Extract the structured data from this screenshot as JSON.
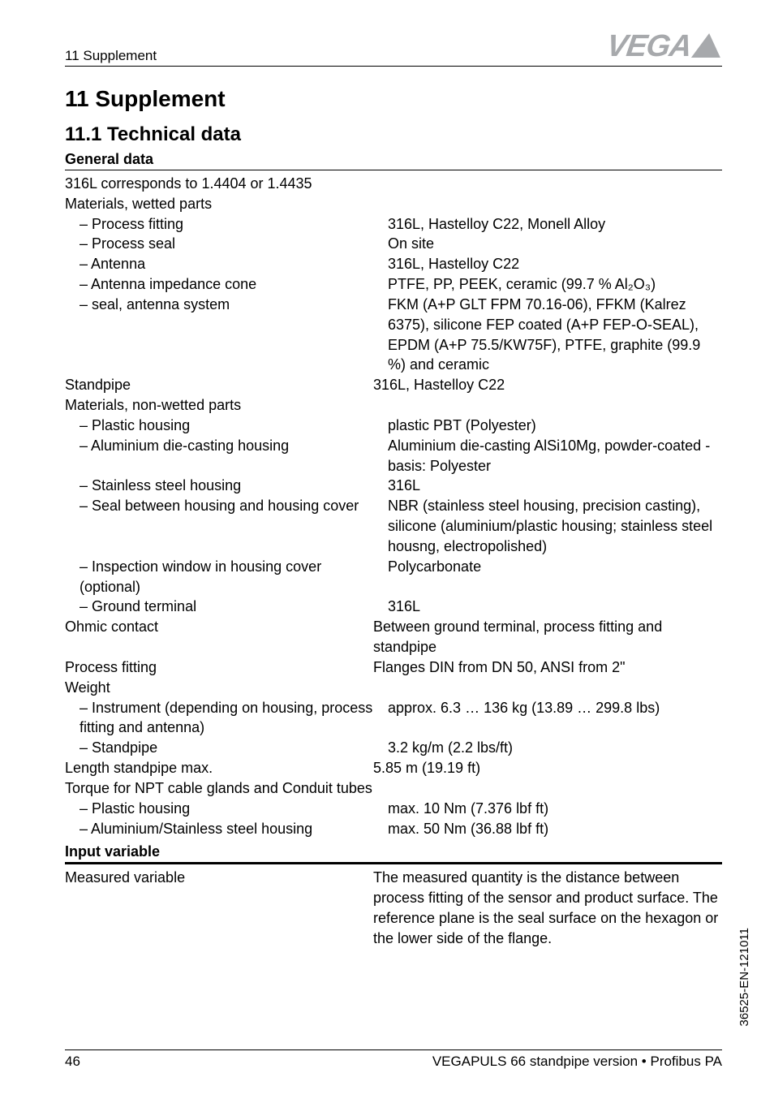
{
  "header": {
    "left": "11 Supplement",
    "logo_text": "VEGA"
  },
  "chapter": "11   Supplement",
  "section": "11.1   Technical data",
  "group1": {
    "title": "General data",
    "line1": "316L corresponds to 1.4404 or 1.4435",
    "line2": "Materials, wetted parts",
    "items1": [
      {
        "l": "Process fitting",
        "r": "316L, Hastelloy C22, Monell Alloy"
      },
      {
        "l": "Process seal",
        "r": "On site"
      },
      {
        "l": "Antenna",
        "r": "316L, Hastelloy C22"
      },
      {
        "l": "Antenna impedance cone",
        "r": "PTFE, PP, PEEK, ceramic (99.7 % Al₂O₃)"
      },
      {
        "l": "seal, antenna system",
        "r": "FKM (A+P GLT FPM 70.16-06), FFKM (Kalrez 6375), silicone FEP coated (A+P FEP-O-SEAL), EPDM (A+P 75.5/KW75F), PTFE, graphite (99.9 %) and ceramic"
      }
    ],
    "standpipe": {
      "l": "Standpipe",
      "r": "316L, Hastelloy C22"
    },
    "line3": "Materials, non-wetted parts",
    "items2": [
      {
        "l": "Plastic housing",
        "r": "plastic PBT (Polyester)"
      },
      {
        "l": "Aluminium die-casting housing",
        "r": "Aluminium die-casting AlSi10Mg, powder-coated - basis: Polyester"
      },
      {
        "l": "Stainless steel housing",
        "r": "316L"
      },
      {
        "l": "Seal between housing and housing cover",
        "r": "NBR (stainless steel housing, precision casting), silicone (aluminium/plastic housing; stainless steel housng, electropolished)"
      },
      {
        "l": "Inspection window in housing cover (optional)",
        "r": "Polycarbonate"
      },
      {
        "l": "Ground terminal",
        "r": "316L"
      }
    ],
    "plain1": [
      {
        "l": "Ohmic contact",
        "r": "Between ground terminal, process fitting and standpipe"
      },
      {
        "l": "Process fitting",
        "r": "Flanges DIN from DN 50, ANSI from 2\""
      }
    ],
    "weight_label": "Weight",
    "items3": [
      {
        "l": "Instrument (depending on housing, process fitting and antenna)",
        "r": "approx. 6.3 … 136 kg (13.89 … 299.8 lbs)"
      },
      {
        "l": "Standpipe",
        "r": "3.2 kg/m (2.2 lbs/ft)"
      }
    ],
    "plain2": [
      {
        "l": "Length standpipe max.",
        "r": "5.85 m (19.19 ft)"
      }
    ],
    "torque_label": "Torque for NPT cable glands and Conduit tubes",
    "items4": [
      {
        "l": "Plastic housing",
        "r": "max. 10 Nm (7.376 lbf ft)"
      },
      {
        "l": "Aluminium/Stainless steel housing",
        "r": "max. 50 Nm (36.88 lbf ft)"
      }
    ]
  },
  "group2": {
    "title": "Input variable",
    "row": {
      "l": "Measured variable",
      "r": "The measured quantity is the distance between process fitting of the sensor and product surface. The reference plane is the seal surface on the hexagon or the lower side of the flange."
    }
  },
  "footer": {
    "page": "46",
    "title": "VEGAPULS 66 standpipe version • Profibus PA"
  },
  "docnum": "36525-EN-121011"
}
